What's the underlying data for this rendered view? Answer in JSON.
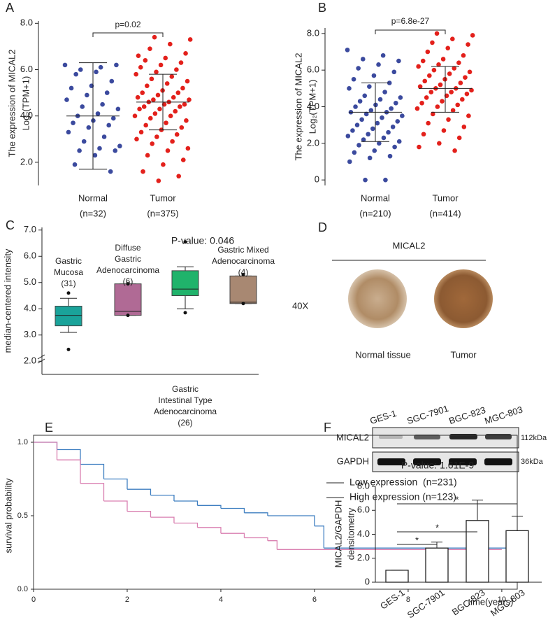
{
  "chart_data": [
    {
      "panel": "A",
      "type": "strip",
      "ylabel": [
        "The expression of MICAL2",
        "Log₂(TPM+1)"
      ],
      "categories": [
        "Normal",
        "Tumor"
      ],
      "counts": [
        "(n=32)",
        "(n=375)"
      ],
      "series": [
        {
          "color": "#3b4a9e",
          "values": [
            6.2,
            6.1,
            6.0,
            6.2,
            5.9,
            5.8,
            5.5,
            5.3,
            5.2,
            5.0,
            4.9,
            4.7,
            4.5,
            4.4,
            4.3,
            4.1,
            4.0,
            3.9,
            3.8,
            3.7,
            3.6,
            3.5,
            3.3,
            3.1,
            2.9,
            2.7,
            2.6,
            2.5,
            2.5,
            2.3,
            1.9,
            1.6
          ]
        },
        {
          "color": "#e3201b",
          "values": [
            7.4,
            7.3,
            7.1,
            6.9,
            6.7,
            6.5,
            6.4,
            6.3,
            6.2,
            6.1,
            6.0,
            5.9,
            5.8,
            5.7,
            5.6,
            5.5,
            5.4,
            5.3,
            5.2,
            5.1,
            5.0,
            5.0,
            4.9,
            4.8,
            4.8,
            4.7,
            4.7,
            4.6,
            4.6,
            4.5,
            4.5,
            4.4,
            4.4,
            4.3,
            4.3,
            4.2,
            4.1,
            4.0,
            4.0,
            3.9,
            3.8,
            3.7,
            3.6,
            3.5,
            3.4,
            3.3,
            3.2,
            3.1,
            3.0,
            2.9,
            2.8,
            2.6,
            2.5,
            2.3,
            2.1,
            1.9,
            1.6,
            1.4,
            1.2,
            6.6
          ]
        }
      ],
      "mean": [
        4.0,
        4.6
      ],
      "low": [
        1.7,
        3.4
      ],
      "high": [
        6.3,
        5.8
      ],
      "annotation": "p=0.02",
      "ylim": [
        1.0,
        8.1
      ],
      "yticks": [
        {
          "value": 2,
          "label": "2.0"
        },
        {
          "value": 4,
          "label": "4.0"
        },
        {
          "value": 6,
          "label": "6.0"
        },
        {
          "value": 8,
          "label": "8.0"
        }
      ]
    },
    {
      "panel": "B",
      "type": "strip",
      "ylabel": [
        "The expression of MICAL2",
        "Log₂(TPM+1)"
      ],
      "categories": [
        "Normal",
        "Tumor"
      ],
      "counts": [
        "(n=210)",
        "(n=414)"
      ],
      "series": [
        {
          "color": "#3b4a9e",
          "values": [
            7.1,
            6.8,
            6.6,
            6.5,
            6.3,
            6.1,
            5.9,
            5.7,
            5.5,
            5.3,
            5.1,
            5.0,
            4.8,
            4.6,
            4.5,
            4.4,
            4.3,
            4.2,
            4.1,
            4.0,
            3.9,
            3.8,
            3.7,
            3.7,
            3.6,
            3.5,
            3.4,
            3.3,
            3.2,
            3.1,
            3.0,
            2.9,
            2.8,
            2.7,
            2.6,
            2.5,
            2.4,
            2.3,
            2.2,
            2.1,
            2.0,
            1.9,
            1.8,
            1.6,
            1.5,
            1.3,
            1.2,
            1.0,
            0,
            0
          ]
        },
        {
          "color": "#e3201b",
          "values": [
            8.0,
            7.9,
            7.7,
            7.5,
            7.4,
            7.2,
            7.0,
            6.8,
            6.6,
            6.5,
            6.4,
            6.3,
            6.2,
            6.1,
            6.0,
            5.9,
            5.8,
            5.7,
            5.6,
            5.5,
            5.4,
            5.3,
            5.2,
            5.1,
            5.0,
            5.0,
            4.9,
            4.8,
            4.8,
            4.7,
            4.6,
            4.5,
            4.4,
            4.3,
            4.2,
            4.1,
            4.0,
            3.9,
            3.8,
            3.6,
            3.5,
            3.3,
            3.1,
            2.9,
            2.7,
            2.5,
            2.3,
            2.0,
            1.8,
            1.6
          ]
        }
      ],
      "mean": [
        3.7,
        5.0
      ],
      "low": [
        2.1,
        3.7
      ],
      "high": [
        5.3,
        6.2
      ],
      "annotation": "p=6.8e-27",
      "ylim": [
        -0.3,
        8.3
      ],
      "yticks": [
        0,
        {
          "value": 2,
          "label": "2.0"
        },
        {
          "value": 4,
          "label": "4.0"
        },
        {
          "value": 6,
          "label": "6.0"
        },
        {
          "value": 8,
          "label": "8.0"
        }
      ]
    },
    {
      "panel": "C",
      "type": "box",
      "ylabel": "median-centered intensity",
      "annotation": "P-value: 0.046",
      "categories": [
        [
          "Gastric",
          "Mucosa"
        ],
        [
          "Diffuse",
          "Gastric",
          "Adenocarcinoma"
        ],
        [
          "Gastric",
          "Intestinal Type",
          "Adenocarcinoma"
        ],
        [
          "Gastric Mixed",
          "Adenocarcinoma"
        ]
      ],
      "counts": [
        "(31)",
        "(6)",
        "(26)",
        "(4)"
      ],
      "colors": [
        "#1aa39a",
        "#b06a95",
        "#20b36b",
        "#a88872"
      ],
      "whisker_low": [
        3.1,
        3.75,
        4.0,
        4.2
      ],
      "q1": [
        3.35,
        3.75,
        4.5,
        4.2
      ],
      "median": [
        3.75,
        3.9,
        4.75,
        4.25
      ],
      "q3": [
        4.1,
        4.95,
        5.45,
        5.25
      ],
      "whisker_high": [
        4.4,
        4.95,
        5.6,
        5.25
      ],
      "outliers": [
        [
          2.45,
          4.6
        ],
        [
          4.95,
          3.75
        ],
        [
          6.55,
          3.85
        ],
        [
          5.3,
          4.2
        ]
      ],
      "ylim": [
        1.5,
        7.1
      ],
      "yticks": [
        {
          "value": 2,
          "label": "2.0"
        },
        {
          "value": 3,
          "label": "3.0"
        },
        {
          "value": 4,
          "label": "4.0"
        },
        {
          "value": 5,
          "label": "5.0"
        },
        {
          "value": 6,
          "label": "6.0"
        },
        {
          "value": 7,
          "label": "7.0"
        }
      ]
    },
    {
      "panel": "E",
      "type": "km",
      "ylabel": "survival probability",
      "xlabel": "time(years)",
      "annotation": "P-value: 1.61E-9",
      "series": [
        {
          "name": "Low expression  (n=231)",
          "color": "#3f7fc1",
          "x": [
            0,
            0.5,
            1,
            1.5,
            2,
            2.5,
            3,
            3.5,
            4,
            4.5,
            5,
            5.5,
            6,
            6.2,
            10.3
          ],
          "values": [
            1,
            0.95,
            0.85,
            0.75,
            0.68,
            0.64,
            0.6,
            0.57,
            0.55,
            0.52,
            0.5,
            0.5,
            0.43,
            0.28,
            0.28
          ]
        },
        {
          "name": "High expression (n=123)",
          "color": "#d97fb0",
          "x": [
            0,
            0.5,
            1,
            1.5,
            2,
            2.5,
            3,
            3.5,
            4,
            4.5,
            5,
            5.2,
            10
          ],
          "values": [
            1,
            0.88,
            0.72,
            0.6,
            0.53,
            0.49,
            0.45,
            0.42,
            0.38,
            0.35,
            0.33,
            0.27,
            0.27
          ]
        }
      ],
      "xlim": [
        0,
        10.3
      ],
      "ylim": [
        0,
        1
      ],
      "xticks": [
        0,
        2,
        4,
        6,
        8,
        10
      ],
      "yticks": [
        {
          "value": 0,
          "label": "0.0"
        },
        {
          "value": 0.5,
          "label": "0.5"
        },
        {
          "value": 1,
          "label": "1.0"
        }
      ]
    },
    {
      "panel": "F",
      "type": "bar",
      "ylabel": [
        "MICAL2/GAPDH",
        "densitometry"
      ],
      "categories": [
        "GES-1",
        "SGC-7901",
        "BGC-823",
        "MGC-803"
      ],
      "values": [
        1.0,
        2.85,
        5.15,
        4.3
      ],
      "errors": [
        0,
        0.5,
        1.7,
        1.2
      ],
      "significance": [
        "*",
        "*",
        "*"
      ],
      "blot": {
        "rows": [
          "MICAL2",
          "GAPDH"
        ],
        "sizes": [
          "112kDa",
          "36kDa"
        ]
      },
      "ylim": [
        0,
        8
      ],
      "yticks": [
        0,
        {
          "value": 2,
          "label": "2.0"
        },
        {
          "value": 4,
          "label": "4.0"
        },
        {
          "value": 6,
          "label": "6.0"
        },
        {
          "value": 8,
          "label": "8.0"
        }
      ]
    }
  ],
  "figure_d": {
    "panel": "D",
    "title": "MICAL2",
    "magnification": "40X",
    "captions": [
      "Normal tissue",
      "Tumor"
    ]
  }
}
